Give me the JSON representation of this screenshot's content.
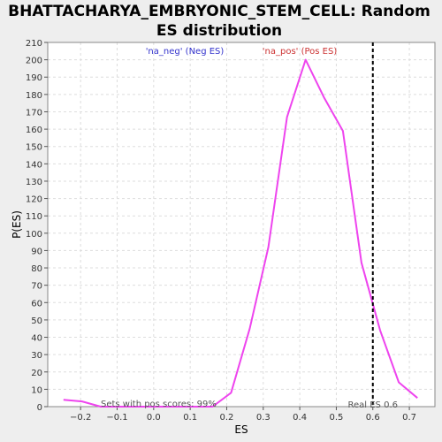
{
  "chart_data": {
    "type": "line",
    "title_lines": [
      "BHATTACHARYA_EMBRYONIC_STEM_CELL: Random",
      "ES distribution"
    ],
    "xlabel": "ES",
    "ylabel": "P(ES)",
    "xlim": [
      -0.29,
      0.77
    ],
    "ylim": [
      0,
      210
    ],
    "xticks": [
      -0.2,
      -0.1,
      0.0,
      0.1,
      0.2,
      0.3,
      0.4,
      0.5,
      0.6,
      0.7
    ],
    "xtick_labels": [
      "−0.2",
      "−0.1",
      "0.0",
      "0.1",
      "0.2",
      "0.3",
      "0.4",
      "0.5",
      "0.6",
      "0.7"
    ],
    "yticks": [
      0,
      10,
      20,
      30,
      40,
      50,
      60,
      70,
      80,
      90,
      100,
      110,
      120,
      130,
      140,
      150,
      160,
      170,
      180,
      190,
      200,
      210
    ],
    "grid": true,
    "legend": [
      {
        "label": "'na_neg' (Neg ES)",
        "color": "#3333cc"
      },
      {
        "label": "'na_pos' (Pos ES)",
        "color": "#cc3333"
      }
    ],
    "series": [
      {
        "color": "#ee44ee",
        "x": [
          -0.247,
          -0.196,
          -0.145,
          -0.094,
          -0.043,
          0.008,
          0.059,
          0.11,
          0.161,
          0.212,
          0.263,
          0.314,
          0.365,
          0.416,
          0.467,
          0.518,
          0.569,
          0.62,
          0.671,
          0.722
        ],
        "y": [
          4,
          3,
          0,
          0,
          0,
          0,
          0,
          0,
          0,
          8,
          45,
          92,
          167,
          200,
          178,
          159,
          83,
          44,
          14,
          5
        ]
      }
    ],
    "vline": {
      "x": 0.6,
      "label": "Real ES 0.6",
      "style": "dashed",
      "color": "#000000"
    },
    "annotation": "Sets with pos scores: 99%"
  }
}
